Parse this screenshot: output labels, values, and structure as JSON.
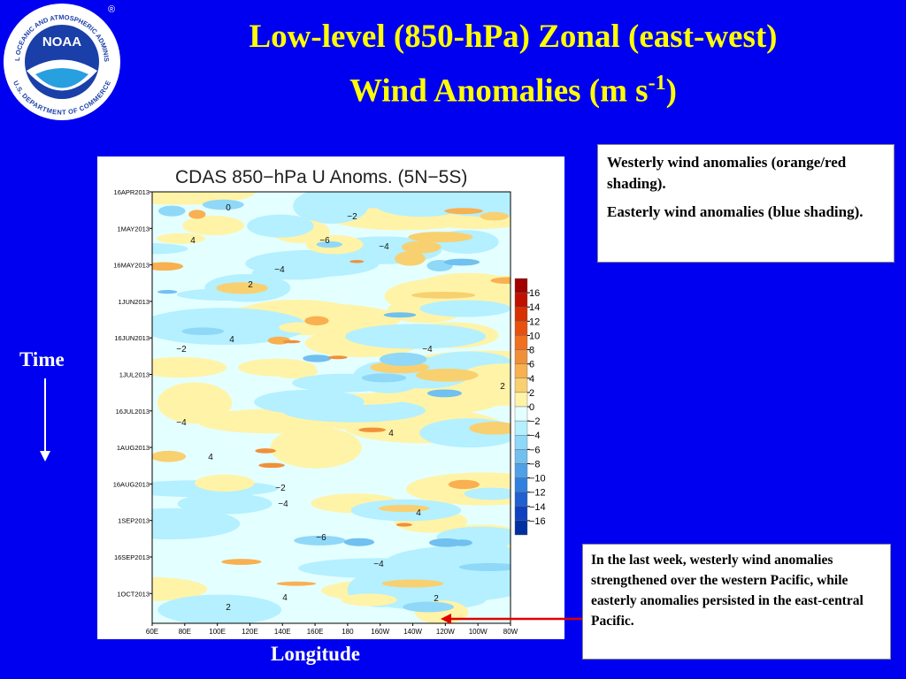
{
  "header": {
    "title_line1": "Low-level (850-hPa) Zonal (east-west)",
    "title_line2": "Wind Anomalies (m s",
    "title_exponent": "-1",
    "title_close": ")"
  },
  "logo": {
    "name": "NOAA",
    "ring_top": "NATIONAL OCEANIC AND ATMOSPHERIC ADMINISTRATION",
    "ring_bottom": "U.S. DEPARTMENT OF COMMERCE",
    "registered": "®"
  },
  "plot": {
    "title": "CDAS 850−hPa U Anoms. (5N−5S)",
    "dates": [
      "16APR2013",
      "1MAY2013",
      "16MAY2013",
      "1JUN2013",
      "16JUN2013",
      "1JUL2013",
      "16JUL2013",
      "1AUG2013",
      "16AUG2013",
      "1SEP2013",
      "16SEP2013",
      "1OCT2013"
    ],
    "longitudes": [
      "60E",
      "80E",
      "100E",
      "120E",
      "140E",
      "160E",
      "180",
      "160W",
      "140W",
      "120W",
      "100W",
      "80W"
    ],
    "colorbar": {
      "ticks": [
        16,
        14,
        12,
        10,
        8,
        6,
        4,
        2,
        0,
        {
          "value": -2,
          "label": "−2"
        },
        {
          "value": -4,
          "label": "−4"
        },
        {
          "value": -6,
          "label": "−6"
        },
        {
          "value": -8,
          "label": "−8"
        },
        {
          "value": -10,
          "label": "−10"
        },
        {
          "value": -12,
          "label": "−12"
        },
        {
          "value": -14,
          "label": "−14"
        },
        {
          "value": -16,
          "label": "−16"
        }
      ],
      "colors": [
        "#a00000",
        "#c01000",
        "#d83000",
        "#e85010",
        "#f07020",
        "#f09038",
        "#f8b050",
        "#f8d070",
        "#fff3a8",
        "#e4ffff",
        "#b4f0ff",
        "#90d8f8",
        "#70c0f0",
        "#50a0e8",
        "#3080e0",
        "#2060d0",
        "#1040c0",
        "#0030a0"
      ]
    },
    "contour_labels": [
      0,
      {
        "value": -2,
        "label": "−2"
      },
      {
        "value": -6,
        "label": "−6"
      },
      {
        "value": -4,
        "label": "−4"
      },
      4,
      2,
      {
        "value": -4,
        "label": "−4"
      },
      4,
      {
        "value": -2,
        "label": "−2"
      },
      {
        "value": -4,
        "label": "−4"
      },
      2,
      {
        "value": -4,
        "label": "−4"
      },
      4,
      4,
      {
        "value": -2,
        "label": "−2"
      },
      {
        "value": -4,
        "label": "−4"
      },
      4,
      {
        "value": -6,
        "label": "−6"
      },
      {
        "value": -4,
        "label": "−4"
      },
      4,
      2,
      2
    ]
  },
  "labels": {
    "time": "Time",
    "longitude": "Longitude"
  },
  "notes": {
    "box1": [
      "Westerly wind anomalies (orange/red shading).",
      "Easterly wind anomalies (blue shading)."
    ],
    "box2": "In the last week, westerly wind anomalies strengthened over the western Pacific, while easterly anomalies persisted in the east-central Pacific."
  }
}
